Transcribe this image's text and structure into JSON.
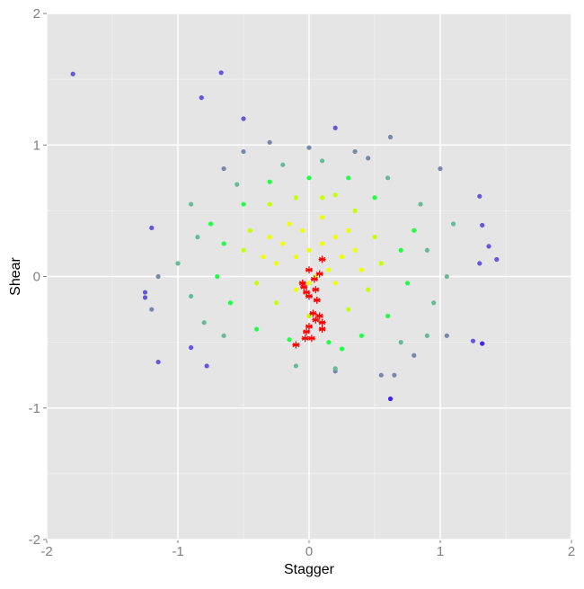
{
  "chart_data": {
    "type": "scatter",
    "x_label": "Stagger",
    "y_label": "Shear",
    "xlim": [
      -2,
      2
    ],
    "ylim": [
      -2,
      2
    ],
    "xticks": [
      -2,
      -1,
      0,
      1,
      2
    ],
    "yticks": [
      -2,
      -1,
      0,
      1,
      2
    ],
    "grid": true,
    "minor_grid": true,
    "background": "#e5e5e5",
    "grid_color": "#ffffff",
    "series": [
      {
        "color": "#7788aa",
        "marker": "circle",
        "x": [
          0.0,
          0.35,
          -0.3,
          0.62,
          -0.5,
          0.55,
          0.65,
          1.0,
          1.05,
          -1.2,
          -1.15,
          -0.65,
          0.2,
          0.8,
          0.45
        ],
        "y": [
          0.98,
          0.95,
          1.02,
          1.06,
          0.95,
          -0.75,
          -0.75,
          0.82,
          -0.45,
          -0.25,
          0.0,
          0.82,
          -0.72,
          -0.6,
          0.9
        ]
      },
      {
        "color": "#66bb99",
        "marker": "circle",
        "x": [
          0.9,
          -0.85,
          0.95,
          -0.9,
          0.6,
          -0.55,
          0.7,
          -0.65,
          0.1,
          -0.2,
          0.2,
          -0.1,
          1.05,
          -1.0,
          0.85,
          -0.8,
          1.1,
          0.9,
          -0.9
        ],
        "y": [
          0.2,
          0.3,
          -0.2,
          -0.15,
          0.75,
          0.7,
          -0.5,
          -0.45,
          0.88,
          0.85,
          -0.7,
          -0.68,
          0.0,
          0.1,
          0.55,
          -0.35,
          0.4,
          -0.45,
          0.55
        ]
      },
      {
        "color": "#22ff44",
        "marker": "circle",
        "x": [
          0.7,
          -0.65,
          0.6,
          -0.6,
          0.0,
          0.3,
          -0.3,
          0.15,
          -0.15,
          0.75,
          -0.7,
          0.5,
          -0.5,
          0.4,
          -0.4,
          0.8,
          -0.75,
          0.25
        ],
        "y": [
          0.2,
          0.25,
          -0.3,
          -0.2,
          0.75,
          0.75,
          0.72,
          -0.5,
          -0.48,
          -0.05,
          0.0,
          0.6,
          0.55,
          -0.45,
          -0.4,
          0.35,
          0.4,
          -0.55
        ]
      },
      {
        "color": "#c8ff00",
        "marker": "circle",
        "x": [
          0.5,
          -0.45,
          0.45,
          -0.4,
          0.1,
          -0.1,
          0.3,
          -0.25,
          0.55,
          -0.5,
          0.0,
          0.2,
          0.35,
          -0.3
        ],
        "y": [
          0.3,
          0.35,
          -0.1,
          -0.05,
          0.6,
          0.6,
          -0.25,
          -0.2,
          0.1,
          0.2,
          -0.3,
          0.62,
          0.5,
          0.55
        ]
      },
      {
        "color": "#eeff00",
        "marker": "circle",
        "x": [
          0,
          0.1,
          -0.1,
          0.2,
          -0.2,
          0.15,
          -0.05,
          0.05,
          0.25,
          -0.25,
          0.3,
          -0.15,
          0.1,
          0.35,
          -0.3,
          0.0,
          0.2,
          -0.1,
          0.4,
          -0.35
        ],
        "y": [
          0.2,
          0.25,
          0.15,
          0.3,
          0.25,
          0.05,
          0.35,
          0.0,
          0.15,
          0.1,
          0.35,
          0.4,
          0.45,
          0.2,
          0.3,
          -0.05,
          -0.05,
          -0.1,
          0.05,
          0.15
        ]
      },
      {
        "color": "#6655dd",
        "marker": "circle",
        "x": [
          -1.8,
          -0.67,
          -0.82,
          -0.5,
          0.2,
          -1.15,
          -1.25,
          -1.2,
          -0.78,
          1.3,
          1.37,
          1.43,
          1.25,
          1.3,
          -0.9,
          -1.25,
          1.32
        ],
        "y": [
          1.54,
          1.55,
          1.36,
          1.2,
          1.13,
          -0.65,
          -0.12,
          0.37,
          -0.68,
          0.61,
          0.23,
          0.13,
          -0.49,
          0.1,
          -0.54,
          -0.16,
          0.39
        ]
      },
      {
        "color": "#4422ee",
        "marker": "circle",
        "x": [
          0.62,
          1.32
        ],
        "y": [
          -0.93,
          -0.51
        ]
      },
      {
        "color": "#ff0000",
        "marker": "star",
        "x": [
          -0.05,
          -0.02,
          0.0,
          -0.04,
          0.05,
          0.06,
          0.08,
          0.1,
          0.0,
          0.03,
          0.08,
          0.1,
          0.05,
          0.0,
          -0.02,
          0.1,
          -0.1,
          0.02,
          -0.03,
          0.04
        ],
        "y": [
          -0.05,
          -0.12,
          -0.15,
          -0.08,
          -0.1,
          -0.18,
          0.02,
          0.13,
          0.05,
          -0.28,
          -0.3,
          -0.35,
          -0.33,
          -0.38,
          -0.42,
          -0.4,
          -0.52,
          -0.47,
          -0.47,
          -0.02
        ]
      }
    ]
  }
}
